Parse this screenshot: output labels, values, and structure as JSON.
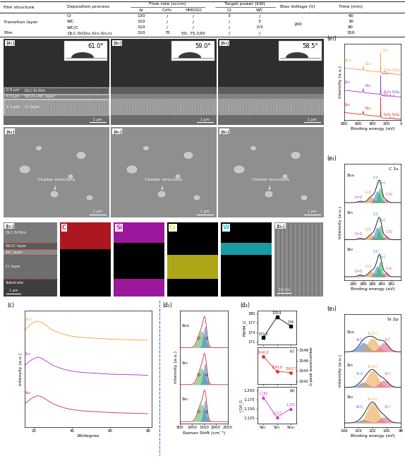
{
  "table": {
    "columns": [
      "Film structure",
      "Deposition process",
      "Flow rate (sccm)",
      "Target power (kW)",
      "Bias Voltage (V)",
      "Time (min)"
    ],
    "subcolumns": {
      "Flow rate (sccm)": [
        "Ar",
        "C₂H₂",
        "HMDSO"
      ],
      "Target power (kW)": [
        "Cr",
        "WC"
      ]
    },
    "rows": [
      [
        "Transition layer",
        "Cr",
        "130",
        "/",
        "/",
        "3",
        "/",
        "200",
        "60"
      ],
      [
        null,
        "WC",
        "110",
        "/",
        "/",
        "/",
        "3",
        null,
        "30"
      ],
      [
        null,
        "WC/C",
        "110",
        "/",
        "/",
        "/",
        "0.5",
        null,
        "90"
      ],
      [
        "Film",
        "DLC-Si(Si₅₀,Si₇₅,Si₁₀₀)",
        "110",
        "75",
        "50, 75,100",
        "/",
        "/",
        null,
        "150"
      ]
    ]
  },
  "images": {
    "cross_section": [
      {
        "label": "(a₁)",
        "contact_angle": "61.0°"
      },
      {
        "label": "(a₂)",
        "contact_angle": "59.0°"
      },
      {
        "label": "(a₃)",
        "contact_angle": "58.5°"
      }
    ],
    "layers": [
      {
        "thickness": "0.9 μm",
        "name": "DLC-Si film"
      },
      {
        "thickness": "0.5 μm",
        "name": "WC/C+WC layer"
      },
      {
        "thickness": "1.2 μm",
        "name": "Cr layer"
      }
    ],
    "surface": [
      {
        "label": "(a₄)"
      },
      {
        "label": "(a₅)"
      },
      {
        "label": "(a₆)"
      }
    ],
    "surface_note": "Cluster structure",
    "scale_bar": "1 μm",
    "eds": {
      "label": "(b₁)",
      "layers": [
        "DLC-Si film",
        "WC/C layer",
        "WC layer",
        "Cr layer",
        "Substrate"
      ],
      "scale_bar": "1 μm",
      "maps": [
        {
          "element": "C",
          "color": "#e8202a",
          "layers": [
            "DLC-Si film",
            "WC/C layer"
          ]
        },
        {
          "element": "Si",
          "color": "#d020d0",
          "layers": [
            "DLC-Si film",
            "Substrate"
          ]
        },
        {
          "element": "Cr",
          "color": "#e8e020",
          "layers": [
            "Cr layer"
          ]
        },
        {
          "element": "W",
          "color": "#20d0e0",
          "layers": [
            "WC/C layer",
            "WC layer"
          ]
        }
      ]
    },
    "tem": {
      "label": "(b₂)",
      "scale_bar": "10 nm"
    }
  },
  "chart_data": [
    {
      "type": "line",
      "title": "(e₁)",
      "xlabel": "Binding energy (eV)",
      "ylabel": "Intensity (a.u.)",
      "x": [
        800,
        700,
        600,
        560,
        545,
        538,
        532,
        526,
        515,
        450,
        400,
        350,
        300,
        295,
        290,
        287,
        285,
        283,
        280,
        260,
        200,
        160,
        154,
        150,
        145,
        110,
        104,
        101,
        97,
        60,
        0
      ],
      "xlim": [
        800,
        0
      ],
      "xticks": [
        800,
        600,
        400,
        200,
        0
      ],
      "ylim": [
        0,
        3.6
      ],
      "tick_labels": "x",
      "series": [
        {
          "name": "Si₁₀₀",
          "color": "#f0a030",
          "values": [
            2.45,
            2.42,
            2.38,
            2.37,
            2.37,
            2.4,
            2.52,
            2.37,
            2.34,
            2.32,
            2.3,
            2.29,
            2.27,
            2.27,
            2.28,
            2.4,
            3.15,
            2.55,
            2.22,
            2.2,
            2.18,
            2.18,
            2.2,
            2.23,
            2.18,
            2.17,
            2.19,
            2.21,
            2.17,
            2.15,
            2.14
          ]
        },
        {
          "name": "Si₇₅",
          "color": "#9b30c8",
          "values": [
            1.4,
            1.37,
            1.33,
            1.32,
            1.32,
            1.35,
            1.48,
            1.32,
            1.29,
            1.27,
            1.25,
            1.24,
            1.22,
            1.22,
            1.23,
            1.35,
            2.1,
            1.5,
            1.17,
            1.15,
            1.13,
            1.13,
            1.15,
            1.18,
            1.13,
            1.12,
            1.14,
            1.16,
            1.12,
            1.1,
            1.09
          ]
        },
        {
          "name": "Si₅₀",
          "color": "#d42a2a",
          "values": [
            0.35,
            0.32,
            0.28,
            0.27,
            0.27,
            0.3,
            0.42,
            0.27,
            0.24,
            0.22,
            0.2,
            0.19,
            0.17,
            0.17,
            0.18,
            0.3,
            1.05,
            0.45,
            0.12,
            0.1,
            0.08,
            0.08,
            0.1,
            0.12,
            0.08,
            0.07,
            0.09,
            0.11,
            0.07,
            0.05,
            0.04
          ]
        }
      ],
      "annotations": [
        {
          "text": "O1s",
          "x": 532
        },
        {
          "text": "C1s",
          "x": 285
        },
        {
          "text": "Si2s Si2p",
          "x": 125
        }
      ]
    },
    {
      "type": "area",
      "title": "(e₂)",
      "xlabel": "Binding energy (eV)",
      "ylabel": "Intensity (a.u.)",
      "xlim": [
        292,
        280
      ],
      "xticks": [
        290,
        288,
        286,
        284,
        282
      ],
      "ylim": [
        0,
        3.3
      ],
      "tick_labels": "x",
      "color": "#000000",
      "annotations": [
        {
          "text": "C 1s"
        }
      ],
      "samples": [
        {
          "name": "Si₁₀₀",
          "baseline": 2.2,
          "peaks": [
            {
              "name": "C=O",
              "color": "#8e44ad",
              "center": 288.6,
              "height": 0.04,
              "fwhm": 1.2
            },
            {
              "name": "C-O",
              "color": "#e67e22",
              "center": 286.3,
              "height": 0.16,
              "fwhm": 1.5
            },
            {
              "name": "C-C",
              "color": "#2980b9",
              "center": 285.0,
              "height": 0.33,
              "fwhm": 1.3
            },
            {
              "name": "C=C",
              "color": "#27ae60",
              "center": 284.4,
              "height": 0.42,
              "fwhm": 1.0
            },
            {
              "name": "C-Si",
              "color": "#e0506e",
              "center": 283.3,
              "height": 0.08,
              "fwhm": 1.2
            }
          ]
        },
        {
          "name": "Si₇₅",
          "baseline": 1.15,
          "peaks": [
            {
              "name": "C=O",
              "color": "#8e44ad",
              "center": 288.6,
              "height": 0.04,
              "fwhm": 1.2
            },
            {
              "name": "C-O",
              "color": "#e67e22",
              "center": 286.3,
              "height": 0.14,
              "fwhm": 1.5
            },
            {
              "name": "C-C",
              "color": "#2980b9",
              "center": 285.0,
              "height": 0.35,
              "fwhm": 1.3
            },
            {
              "name": "C=C",
              "color": "#27ae60",
              "center": 284.4,
              "height": 0.4,
              "fwhm": 1.0
            },
            {
              "name": "C-Si",
              "color": "#e0506e",
              "center": 283.3,
              "height": 0.1,
              "fwhm": 1.2
            }
          ]
        },
        {
          "name": "Si₅₀",
          "baseline": 0.1,
          "peaks": [
            {
              "name": "C=O",
              "color": "#8e44ad",
              "center": 288.6,
              "height": 0.05,
              "fwhm": 1.2
            },
            {
              "name": "C-O",
              "color": "#e67e22",
              "center": 286.3,
              "height": 0.15,
              "fwhm": 1.5
            },
            {
              "name": "C-C",
              "color": "#2980b9",
              "center": 285.0,
              "height": 0.3,
              "fwhm": 1.3
            },
            {
              "name": "C=C",
              "color": "#27ae60",
              "center": 284.4,
              "height": 0.44,
              "fwhm": 1.0
            },
            {
              "name": "C-Si",
              "color": "#e0506e",
              "center": 283.3,
              "height": 0.12,
              "fwhm": 1.2
            }
          ]
        }
      ]
    },
    {
      "type": "area",
      "title": "(e₃)",
      "xlabel": "Binding energy (eV)",
      "ylabel": "Intensity (a.u.)",
      "xlim": [
        106,
        98
      ],
      "xticks": [
        106,
        104,
        102,
        100,
        98
      ],
      "ylim": [
        0,
        2.7
      ],
      "tick_labels": "x",
      "color": "#000000",
      "annotations": [
        {
          "text": "Si 2p"
        }
      ],
      "samples": [
        {
          "name": "Si₁₀₀",
          "baseline": 1.8,
          "peaks": [
            {
              "name": "Si-O",
              "color": "#3b6fd0",
              "center": 103.3,
              "height": 0.22,
              "fwhm": 1.6
            },
            {
              "name": "Si-O-C",
              "color": "#e8a040",
              "center": 102.0,
              "height": 0.32,
              "fwhm": 1.8
            },
            {
              "name": "Si-C",
              "color": "#e05a8a",
              "center": 100.4,
              "height": 0.22,
              "fwhm": 1.5
            }
          ]
        },
        {
          "name": "Si₇₅",
          "baseline": 0.95,
          "peaks": [
            {
              "name": "Si-O",
              "color": "#3b6fd0",
              "center": 103.3,
              "height": 0.12,
              "fwhm": 1.6
            },
            {
              "name": "Si-O-C",
              "color": "#e8a040",
              "center": 102.0,
              "height": 0.4,
              "fwhm": 1.8
            },
            {
              "name": "Si-C",
              "color": "#e05a8a",
              "center": 100.4,
              "height": 0.17,
              "fwhm": 1.5
            }
          ]
        },
        {
          "name": "Si₅₀",
          "baseline": 0.1,
          "peaks": [
            {
              "name": "Si-O",
              "color": "#3b6fd0",
              "center": 103.3,
              "height": 0.08,
              "fwhm": 1.6
            },
            {
              "name": "Si-O-C",
              "color": "#e8a040",
              "center": 102.0,
              "height": 0.48,
              "fwhm": 1.8
            },
            {
              "name": "Si-C",
              "color": "#e05a8a",
              "center": 100.4,
              "height": 0.14,
              "fwhm": 1.5
            }
          ]
        }
      ]
    },
    {
      "type": "line",
      "title": "(c)",
      "xlabel": "2θ/degree",
      "ylabel": "Intensity (a.u.)",
      "x": [
        15,
        18,
        20,
        22,
        24,
        26,
        28,
        30,
        33,
        36,
        40,
        45,
        50,
        55,
        60,
        65,
        70,
        75,
        80
      ],
      "xlim": [
        15,
        82
      ],
      "xticks": [
        20,
        40,
        60,
        80
      ],
      "ylim": [
        0,
        10
      ],
      "tick_labels": "x",
      "series": [
        {
          "name": "Si₁₀₀",
          "color": "#f0a030",
          "values": [
            8.3,
            8.8,
            9.0,
            9.1,
            9.0,
            8.8,
            8.5,
            8.3,
            8.1,
            7.95,
            7.8,
            7.7,
            7.65,
            7.6,
            7.55,
            7.52,
            7.5,
            7.48,
            7.45
          ]
        },
        {
          "name": "Si₇₅",
          "color": "#9b30c8",
          "values": [
            5.3,
            5.7,
            5.9,
            6.0,
            5.9,
            5.7,
            5.5,
            5.3,
            5.1,
            4.95,
            4.8,
            4.7,
            4.65,
            4.6,
            4.55,
            4.52,
            4.5,
            4.48,
            4.45
          ]
        },
        {
          "name": "Si₅₀",
          "color": "#d42a2a",
          "values": [
            2.0,
            2.4,
            2.6,
            2.7,
            2.6,
            2.4,
            2.2,
            2.0,
            1.8,
            1.65,
            1.5,
            1.4,
            1.35,
            1.3,
            1.25,
            1.22,
            1.2,
            1.18,
            1.15
          ]
        }
      ]
    },
    {
      "type": "area",
      "title": "(d₁)",
      "xlabel": "Raman Shift (cm⁻¹)",
      "ylabel": "Intensity (a.u.)",
      "xlim": [
        500,
        2500
      ],
      "xticks": [
        500,
        1000,
        1500,
        2000,
        2500
      ],
      "ylim": [
        0,
        2.9
      ],
      "tick_labels": "x",
      "color": "#d62728",
      "samples": [
        {
          "name": "Si₁₀₀",
          "baseline": 1.95,
          "peaks": [
            {
              "name": "D",
              "color": "#4caf50",
              "center": 1390,
              "height": 0.43,
              "fwhm": 330
            },
            {
              "name": "G",
              "color": "#3f7fd0",
              "center": 1543.7,
              "height": 0.55,
              "fwhm": 176
            }
          ]
        },
        {
          "name": "Si₇₅",
          "baseline": 1.0,
          "peaks": [
            {
              "name": "D",
              "color": "#4caf50",
              "center": 1390,
              "height": 0.42,
              "fwhm": 330
            },
            {
              "name": "G",
              "color": "#3f7fd0",
              "center": 1543.9,
              "height": 0.55,
              "fwhm": 178.9
            }
          ]
        },
        {
          "name": "Si₅₀",
          "baseline": 0.05,
          "peaks": [
            {
              "name": "D",
              "color": "#4caf50",
              "center": 1390,
              "height": 0.45,
              "fwhm": 330
            },
            {
              "name": "G",
              "color": "#3f7fd0",
              "center": 1546.8,
              "height": 0.55,
              "fwhm": 172.2
            }
          ]
        }
      ]
    },
    {
      "type": "line",
      "title": "(d₂)",
      "categories": [
        "Si₅₀",
        "Si₇₅",
        "Si₁₀₀"
      ],
      "data_labels": true,
      "panels": [
        {
          "ylabel": "FWHM_G",
          "color": "#000000",
          "marker": "square",
          "values": [
            172.2,
            178.9,
            176
          ],
          "ylim": [
            170,
            181
          ],
          "yticks": [
            171,
            174,
            177,
            180
          ]
        },
        {
          "ylabel": "G-peak wavenumber",
          "annotation": "(c)",
          "axis": "y2",
          "color": "#e03030",
          "marker": "circle",
          "values": [
            1546.8,
            1543.9,
            1543.7
          ],
          "ylim": [
            1541.5,
            1548.5
          ],
          "yticks": [
            1542,
            1544,
            1546,
            1548
          ]
        },
        {
          "ylabel": "I_D/I_G",
          "annotation": "(d)",
          "color": "#d030d0",
          "marker": "triangle",
          "values": [
            1.182,
            1.127,
            1.151
          ],
          "ylim": [
            1.11,
            1.21
          ],
          "yticks": [
            1.125,
            {
              "value": 1.15,
              "label": "1.150"
            },
            1.175,
            {
              "value": 1.2,
              "label": "1.200"
            }
          ]
        }
      ]
    }
  ]
}
